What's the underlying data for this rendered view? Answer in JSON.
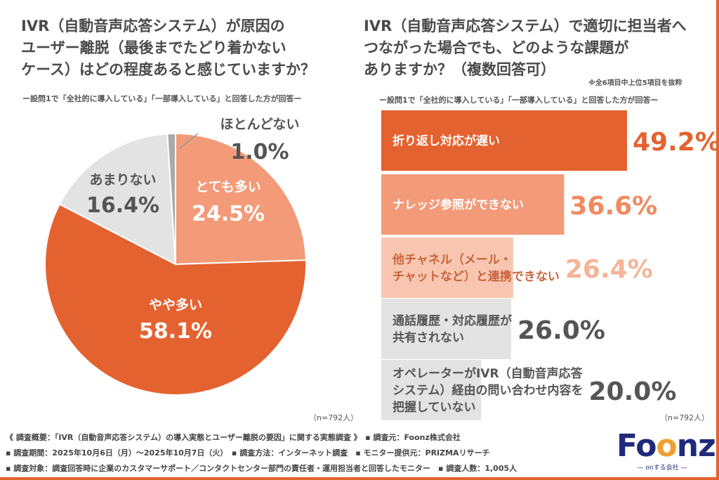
{
  "left": {
    "title": "IVR（自動音声応答システム）が原因の\nユーザー離脱（最後までたどり着かない\nケース）はどの程度あると感じていますか？",
    "subtitle": "ー設問1で「全社的に導入している」「一部導入している」と回答した方が回答ー",
    "n": "（n=792人）"
  },
  "right": {
    "title": "IVR（自動音声応答システム）で適切に担当者へ\nつながった場合でも、どのような課題が\nありますか？（複数回答可）",
    "note": "※全6項目中上位5項目を抜粋",
    "subtitle": "ー設問1で「全社的に導入している」「一部導入している」と回答した方が回答ー",
    "n": "（n=792人）"
  },
  "chart_data": [
    {
      "type": "pie",
      "slices": [
        {
          "label": "とても多い",
          "value": 24.5,
          "display": "24.5%",
          "color": "#f39a78"
        },
        {
          "label": "やや多い",
          "value": 58.1,
          "display": "58.1%",
          "color": "#e4622f"
        },
        {
          "label": "あまりない",
          "value": 16.4,
          "display": "16.4%",
          "color": "#e3e3e3"
        },
        {
          "label": "ほとんどない",
          "value": 1.0,
          "display": "1.0%",
          "color": "#a9a9a9"
        }
      ]
    },
    {
      "type": "bar",
      "orientation": "horizontal",
      "bars": [
        {
          "label": "折り返し対応が遅い",
          "value": 49.2,
          "display": "49.2%",
          "color": "#e4622f"
        },
        {
          "label": "ナレッジ参照ができない",
          "value": 36.6,
          "display": "36.6%",
          "color": "#f39a78"
        },
        {
          "label": "他チャネル（メール・\nチャットなど）と連携できない",
          "value": 26.4,
          "display": "26.4%",
          "color": "#f8c6b0"
        },
        {
          "label": "通話履歴・対応履歴が\n共有されない",
          "value": 26.0,
          "display": "26.0%",
          "color": "#e3e3e3"
        },
        {
          "label": "オペレーターがIVR（自動音声応答\nシステム）経由の問い合わせ内容を\n把握していない",
          "value": 20.0,
          "display": "20.0%",
          "color": "#e3e3e3"
        }
      ]
    }
  ],
  "footer": {
    "line1": "《 調査概要：「IVR（自動音声応答システム）の導入実態とユーザー離脱の要因」に関する実態調査 》　▪ 調査元：Foonz株式会社",
    "line2": "▪ 調査期間：2025年10月6日（月）～2025年10月7日（火）　▪ 調査方法：インターネット調査　▪ モニター提供元：PRIZMAリサーチ",
    "line3": "▪ 調査対象：調査回答時に企業のカスタマーサポート／コンタクトセンター部門の責任者・運用担当者と回答したモニター　▪ 調査人数：1,005人"
  },
  "logo": {
    "text": "Foonz",
    "tagline": "— onする会社 —"
  }
}
